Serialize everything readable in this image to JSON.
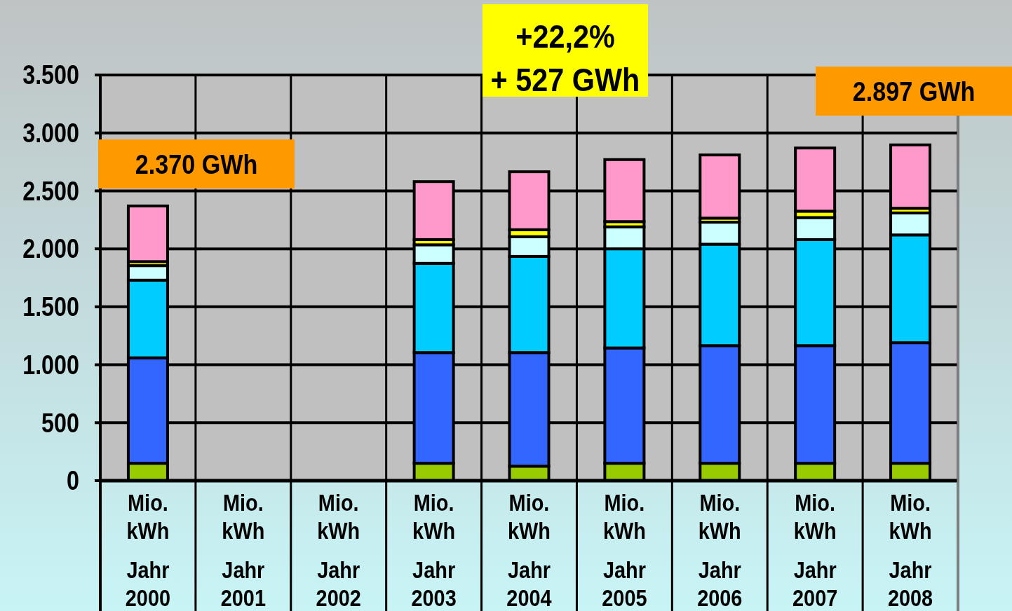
{
  "chart_data": {
    "type": "bar",
    "stacked": true,
    "categories": [
      "Mio. kWh Jahr 2000",
      "Mio. kWh Jahr 2001",
      "Mio. kWh Jahr 2002",
      "Mio. kWh Jahr 2003",
      "Mio. kWh Jahr 2004",
      "Mio. kWh Jahr 2005",
      "Mio. kWh Jahr 2006",
      "Mio. kWh Jahr 2007",
      "Mio. kWh Jahr 2008"
    ],
    "series": [
      {
        "color": "#99cc00",
        "values": [
          150,
          null,
          null,
          150,
          125,
          150,
          150,
          150,
          150
        ]
      },
      {
        "color": "#3366ff",
        "values": [
          910,
          null,
          null,
          955,
          980,
          995,
          1015,
          1015,
          1040
        ]
      },
      {
        "color": "#00ccff",
        "values": [
          670,
          null,
          null,
          770,
          830,
          855,
          875,
          915,
          930
        ]
      },
      {
        "color": "#ccffff",
        "values": [
          125,
          null,
          null,
          160,
          170,
          190,
          190,
          190,
          190
        ]
      },
      {
        "color": "#ffff00",
        "values": [
          35,
          null,
          null,
          45,
          60,
          45,
          35,
          55,
          40
        ]
      },
      {
        "color": "#ff99cc",
        "values": [
          480,
          null,
          null,
          500,
          500,
          535,
          545,
          545,
          547
        ]
      }
    ],
    "ylim": [
      0,
      3500
    ],
    "yticks": [
      0,
      500,
      {
        "value": 1000,
        "label": "1.000"
      },
      {
        "value": 1500,
        "label": "1.500"
      },
      {
        "value": 2000,
        "label": "2.000"
      },
      {
        "value": 2500,
        "label": "2.500"
      },
      {
        "value": 3000,
        "label": "3.000"
      },
      {
        "value": 3500,
        "label": "3.500"
      }
    ],
    "grid": "y",
    "annotations": [
      "2.370 GWh",
      "+22,2% + 527 GWh",
      "2.897 GWh"
    ]
  }
}
